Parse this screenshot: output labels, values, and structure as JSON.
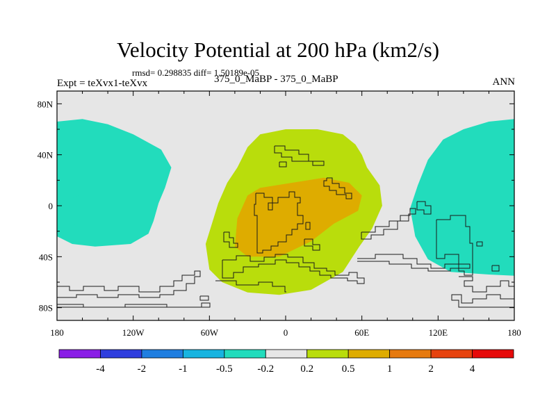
{
  "chart_data": {
    "type": "contour-map",
    "title": "Velocity Potential at 200 hPa (km2/s)",
    "stats": "rmsd= 0.298835 diff= 1.50189e-05",
    "left_label": "Expt = teXvx1-teXvx",
    "center_label": "375_0_MaBP - 375_0_MaBP",
    "right_label": "ANN",
    "x_ticks": [
      "180",
      "120W",
      "60W",
      "0",
      "60E",
      "120E",
      "180"
    ],
    "x_values": [
      -180,
      -120,
      -60,
      0,
      60,
      120,
      180
    ],
    "y_ticks": [
      "80N",
      "40N",
      "0",
      "40S",
      "80S"
    ],
    "y_values": [
      80,
      40,
      0,
      -40,
      -80
    ],
    "xlim": [
      -180,
      180
    ],
    "ylim": [
      -90,
      90
    ],
    "colorbar": {
      "levels": [
        "-4",
        "-2",
        "-1",
        "-0.5",
        "-0.2",
        "0.2",
        "0.5",
        "1",
        "2",
        "4"
      ],
      "colors": [
        "#8a1ee6",
        "#2f3ede",
        "#1f7ee0",
        "#18b4e0",
        "#22dcbc",
        "#e6e6e6",
        "#b9dd0c",
        "#deac00",
        "#e67a0f",
        "#e6430f",
        "#e60a0a"
      ]
    },
    "regions": [
      {
        "name": "negative-northwest-pacific",
        "level": "-0.5 to -0.2",
        "lonlat": [
          [
            -180,
            66
          ],
          [
            -160,
            68
          ],
          [
            -140,
            64
          ],
          [
            -120,
            56
          ],
          [
            -98,
            44
          ],
          [
            -90,
            30
          ],
          [
            -95,
            14
          ],
          [
            -100,
            2
          ],
          [
            -104,
            -12
          ],
          [
            -108,
            -22
          ],
          [
            -122,
            -30
          ],
          [
            -150,
            -32
          ],
          [
            -168,
            -30
          ],
          [
            -180,
            -24
          ]
        ]
      },
      {
        "name": "negative-small-cell",
        "level": "-0.5 to -0.2",
        "lonlat": [
          [
            -168,
            6
          ],
          [
            -160,
            9
          ],
          [
            -156,
            1
          ],
          [
            -157,
            -10
          ],
          [
            -162,
            -16
          ],
          [
            -170,
            -14
          ],
          [
            -173,
            -6
          ],
          [
            -172,
            2
          ]
        ]
      },
      {
        "name": "negative-east",
        "level": "-0.5 to -0.2",
        "lonlat": [
          [
            180,
            68
          ],
          [
            160,
            66
          ],
          [
            140,
            60
          ],
          [
            124,
            52
          ],
          [
            112,
            36
          ],
          [
            104,
            16
          ],
          [
            98,
            -2
          ],
          [
            102,
            -24
          ],
          [
            112,
            -42
          ],
          [
            130,
            -52
          ],
          [
            160,
            -54
          ],
          [
            180,
            -55
          ]
        ]
      },
      {
        "name": "positive-0.2-0.5",
        "level": "0.2 to 0.5",
        "lonlat": [
          [
            -20,
            56
          ],
          [
            0,
            60
          ],
          [
            25,
            60
          ],
          [
            45,
            56
          ],
          [
            55,
            48
          ],
          [
            60,
            40
          ],
          [
            64,
            30
          ],
          [
            74,
            16
          ],
          [
            76,
            0
          ],
          [
            68,
            -18
          ],
          [
            58,
            -32
          ],
          [
            45,
            -52
          ],
          [
            20,
            -66
          ],
          [
            -5,
            -70
          ],
          [
            -30,
            -68
          ],
          [
            -50,
            -60
          ],
          [
            -60,
            -50
          ],
          [
            -63,
            -30
          ],
          [
            -53,
            2
          ],
          [
            -46,
            18
          ],
          [
            -38,
            30
          ],
          [
            -30,
            46
          ]
        ]
      },
      {
        "name": "positive-0.5-1",
        "level": "0.5 to 1",
        "lonlat": [
          [
            -30,
            8
          ],
          [
            -20,
            14
          ],
          [
            5,
            18
          ],
          [
            30,
            22
          ],
          [
            50,
            18
          ],
          [
            60,
            8
          ],
          [
            57,
            -4
          ],
          [
            38,
            -14
          ],
          [
            20,
            -28
          ],
          [
            -5,
            -40
          ],
          [
            -30,
            -40
          ],
          [
            -40,
            -32
          ],
          [
            -38,
            -10
          ]
        ]
      }
    ]
  }
}
